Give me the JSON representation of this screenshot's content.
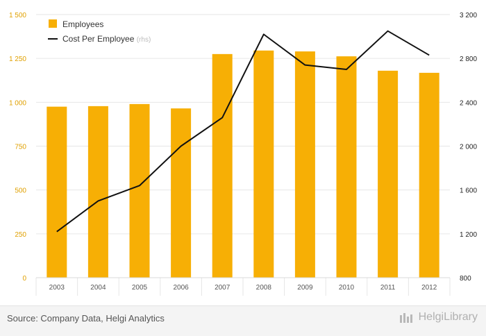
{
  "chart_data": {
    "type": "bar",
    "categories": [
      "2003",
      "2004",
      "2005",
      "2006",
      "2007",
      "2008",
      "2009",
      "2010",
      "2011",
      "2012"
    ],
    "series": [
      {
        "name": "Employees",
        "type": "bar",
        "axis": "left",
        "values": [
          975,
          978,
          990,
          965,
          1275,
          1295,
          1290,
          1262,
          1180,
          1168
        ]
      },
      {
        "name": "Cost Per Employee",
        "type": "line",
        "axis": "right",
        "values": [
          1220,
          1500,
          1640,
          2000,
          2260,
          3020,
          2740,
          2700,
          3050,
          2830
        ]
      }
    ],
    "legend_suffix": "(rhs)",
    "legend_position": "top-left",
    "ylim": [
      0,
      1500
    ],
    "y_ticks": [
      "0",
      "250",
      "500",
      "750",
      "1 000",
      "1 250",
      "1 500"
    ],
    "y2lim": [
      800,
      3200
    ],
    "y2_ticks": [
      "800",
      "1 200",
      "1 600",
      "2 000",
      "2 400",
      "2 800",
      "3 200"
    ],
    "grid": true,
    "colors": {
      "bar": "#F7AF05",
      "line": "#111111",
      "left_axis_text": "#E0A000",
      "right_axis_text": "#222222"
    }
  },
  "footer": {
    "source": "Source: Company Data, Helgi Analytics",
    "brand": "HelgiLibrary"
  }
}
